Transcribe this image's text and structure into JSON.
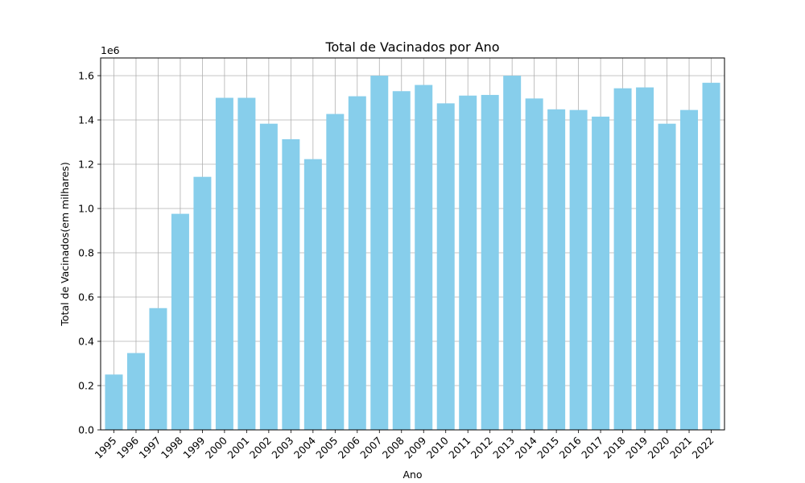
{
  "chart_data": {
    "type": "bar",
    "title": "Total de Vacinados por Ano",
    "xlabel": "Ano",
    "ylabel": "Total de Vacinados(em milhares)",
    "y_offset_label": "1e6",
    "categories": [
      "1995",
      "1996",
      "1997",
      "1998",
      "1999",
      "2000",
      "2001",
      "2002",
      "2003",
      "2004",
      "2005",
      "2006",
      "2007",
      "2008",
      "2009",
      "2010",
      "2011",
      "2012",
      "2013",
      "2014",
      "2015",
      "2016",
      "2017",
      "2018",
      "2019",
      "2020",
      "2021",
      "2022"
    ],
    "values": [
      250000,
      347000,
      550000,
      976000,
      1143000,
      1500000,
      1500000,
      1383000,
      1313000,
      1223000,
      1427000,
      1507000,
      1600000,
      1530000,
      1558000,
      1475000,
      1510000,
      1513000,
      1600000,
      1497000,
      1448000,
      1445000,
      1415000,
      1543000,
      1547000,
      1383000,
      1445000,
      1568000
    ],
    "ylim": [
      0,
      1680000
    ],
    "yticks": [
      0,
      200000,
      400000,
      600000,
      800000,
      1000000,
      1200000,
      1400000,
      1600000
    ],
    "ytick_labels": [
      "0.0",
      "0.2",
      "0.4",
      "0.6",
      "0.8",
      "1.0",
      "1.2",
      "1.4",
      "1.6"
    ],
    "bar_color": "#87CEEB",
    "grid": true,
    "grid_color": "#b0b0b0",
    "legend": "none"
  }
}
